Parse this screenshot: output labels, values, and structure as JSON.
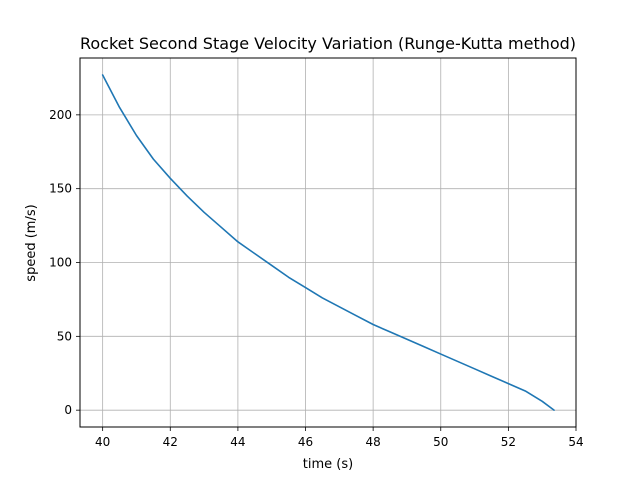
{
  "chart_data": {
    "type": "line",
    "title": "Rocket Second Stage Velocity Variation (Runge-Kutta method)",
    "xlabel": "time (s)",
    "ylabel": "speed (m/s)",
    "xlim": [
      39.33,
      54.0
    ],
    "ylim": [
      -11.4,
      238.5
    ],
    "xticks": [
      40,
      42,
      44,
      46,
      48,
      50,
      52,
      54
    ],
    "yticks": [
      0,
      50,
      100,
      150,
      200
    ],
    "grid": true,
    "series": [
      {
        "color": "#1f77b4",
        "x": [
          40,
          40.5,
          41,
          41.5,
          42,
          42.5,
          43,
          43.5,
          44,
          44.5,
          45,
          45.5,
          46,
          46.5,
          47,
          47.5,
          48,
          48.5,
          49,
          49.5,
          50,
          50.5,
          51,
          51.5,
          52,
          52.5,
          53,
          53.35
        ],
        "y": [
          227,
          205,
          186,
          170,
          157,
          145,
          134,
          124,
          114,
          106,
          98,
          90,
          83,
          76,
          70,
          64,
          58,
          53,
          48,
          43,
          38,
          33,
          28,
          23,
          18,
          13,
          6,
          0
        ]
      }
    ]
  }
}
